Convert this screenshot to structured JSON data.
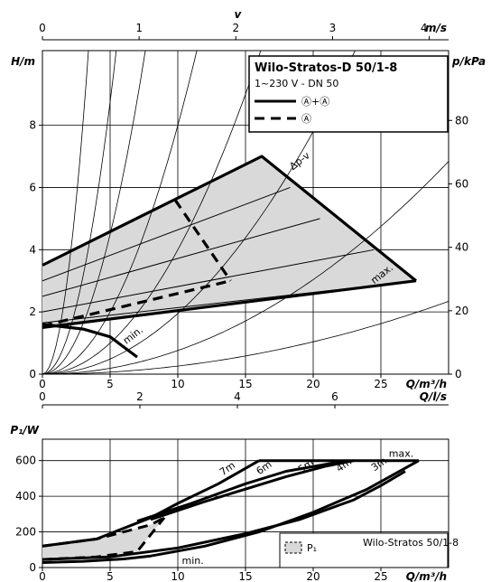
{
  "chart_data": [
    {
      "type": "line",
      "x": {
        "label": "Q/m³/h",
        "ticks": [
          "0",
          "5",
          "10",
          "15",
          "20",
          "25"
        ],
        "range": [
          0,
          30
        ]
      },
      "x_top": {
        "label": "v",
        "unit": "m/s",
        "ticks": [
          "0",
          "1",
          "2",
          "3",
          "4"
        ]
      },
      "y": {
        "label": "H/m",
        "ticks": [
          "0",
          "2",
          "4",
          "6",
          "8"
        ],
        "range": [
          0,
          10.4
        ]
      },
      "y_right": {
        "label": "p/kPa",
        "ticks": [
          "0",
          "20",
          "40",
          "60",
          "80"
        ]
      },
      "grid": true,
      "legend": {
        "title": "Wilo-Stratos-D 50/1-8",
        "subtitle": "1~230 V - DN 50",
        "entries": [
          {
            "style": "solid",
            "label": "Ⓐ+Ⓐ"
          },
          {
            "style": "dashed",
            "label": "Ⓐ"
          }
        ]
      },
      "annotations": {
        "dpv": "Δp-v",
        "max": "max.",
        "min": "min."
      },
      "series": [
        {
          "style": "solid",
          "points": [
            [
              0,
              3.5
            ],
            [
              16.2,
              7.0
            ],
            [
              27.6,
              3.0
            ]
          ]
        },
        {
          "style": "solid",
          "points": [
            [
              0,
              1.5
            ],
            [
              27.6,
              3.0
            ]
          ]
        },
        {
          "style": "solid",
          "points": [
            [
              0,
              1.6
            ],
            [
              3,
              1.45
            ],
            [
              5,
              1.2
            ],
            [
              7,
              0.55
            ]
          ]
        },
        {
          "style": "dashed",
          "points": [
            [
              0,
              1.55
            ],
            [
              13.9,
              3.0
            ]
          ]
        },
        {
          "style": "dashed",
          "points": [
            [
              9.8,
              5.6
            ],
            [
              13.9,
              3.0
            ]
          ]
        }
      ],
      "region_dpv": [
        [
          0,
          3.5
        ],
        [
          16.2,
          7.0
        ],
        [
          27.6,
          3.0
        ],
        [
          0,
          1.5
        ]
      ],
      "inner_lines": [
        [
          [
            0,
            1.65
          ],
          [
            27.6,
            3.0
          ]
        ],
        [
          [
            0,
            2.0
          ],
          [
            24.5,
            4.0
          ]
        ],
        [
          [
            0,
            2.5
          ],
          [
            20.5,
            5.0
          ]
        ],
        [
          [
            0,
            3.0
          ],
          [
            18.3,
            6.0
          ]
        ]
      ],
      "system_curves_k": [
        0.9,
        0.35,
        0.18,
        0.08,
        0.04,
        0.0195,
        0.0076,
        0.0026
      ]
    },
    {
      "type": "line",
      "x": {
        "label": "Q/l/s",
        "ticks": [
          "0",
          "2",
          "4",
          "6"
        ],
        "range": [
          0,
          8.3
        ]
      },
      "grid": false
    },
    {
      "type": "line",
      "x": {
        "label": "Q/m³/h",
        "ticks": [
          "0",
          "5",
          "10",
          "15",
          "20",
          "25"
        ],
        "range": [
          0,
          30
        ]
      },
      "y": {
        "label": "P₁/W",
        "ticks": [
          "0",
          "200",
          "400",
          "600"
        ],
        "range": [
          0,
          720
        ]
      },
      "grid": true,
      "legend": {
        "symbol": "P₁",
        "label": "Wilo-Stratos 50/1-8"
      },
      "annotations": {
        "max": "max.",
        "min": "min.",
        "head_labels": [
          "7m",
          "6m",
          "5m",
          "4m",
          "3m"
        ]
      },
      "series": [
        {
          "style": "solid",
          "points": [
            [
              16,
              600
            ],
            [
              27.8,
              600
            ]
          ]
        },
        {
          "style": "solid",
          "points": [
            [
              0,
              28
            ],
            [
              3,
              35
            ],
            [
              6,
              48
            ],
            [
              8,
              65
            ],
            [
              12,
              120
            ],
            [
              16,
              200
            ],
            [
              20,
              310
            ],
            [
              24,
              440
            ],
            [
              27.8,
              600
            ]
          ]
        },
        {
          "style": "solid",
          "points": [
            [
              0,
              45
            ],
            [
              5,
              60
            ],
            [
              10,
              110
            ],
            [
              15,
              190
            ],
            [
              19,
              270
            ],
            [
              23,
              380
            ],
            [
              25,
              460
            ],
            [
              26.8,
              540
            ]
          ]
        },
        {
          "style": "solid",
          "points": [
            [
              7,
              260
            ],
            [
              11,
              360
            ],
            [
              15,
              470
            ],
            [
              18,
              540
            ],
            [
              21,
              580
            ],
            [
              22.5,
              600
            ]
          ]
        },
        {
          "style": "solid",
          "points": [
            [
              8,
              270
            ],
            [
              12,
              370
            ],
            [
              15,
              440
            ],
            [
              18,
              510
            ],
            [
              21,
              570
            ],
            [
              23,
              600
            ]
          ]
        },
        {
          "style": "solid",
          "points": [
            [
              0,
              120
            ],
            [
              4,
              160
            ],
            [
              8,
              280
            ],
            [
              10,
              360
            ],
            [
              13,
              470
            ],
            [
              16,
              600
            ]
          ]
        },
        {
          "style": "dashed",
          "points": [
            [
              0,
              120
            ],
            [
              4,
              160
            ],
            [
              8,
              240
            ],
            [
              9,
              280
            ]
          ]
        },
        {
          "style": "dashed",
          "points": [
            [
              0,
              45
            ],
            [
              4,
              60
            ],
            [
              7,
              90
            ],
            [
              9,
              280
            ]
          ]
        }
      ],
      "region_p1": [
        [
          0,
          120
        ],
        [
          4,
          160
        ],
        [
          8,
          240
        ],
        [
          9,
          280
        ],
        [
          7,
          90
        ],
        [
          4,
          60
        ],
        [
          0,
          45
        ]
      ]
    }
  ]
}
